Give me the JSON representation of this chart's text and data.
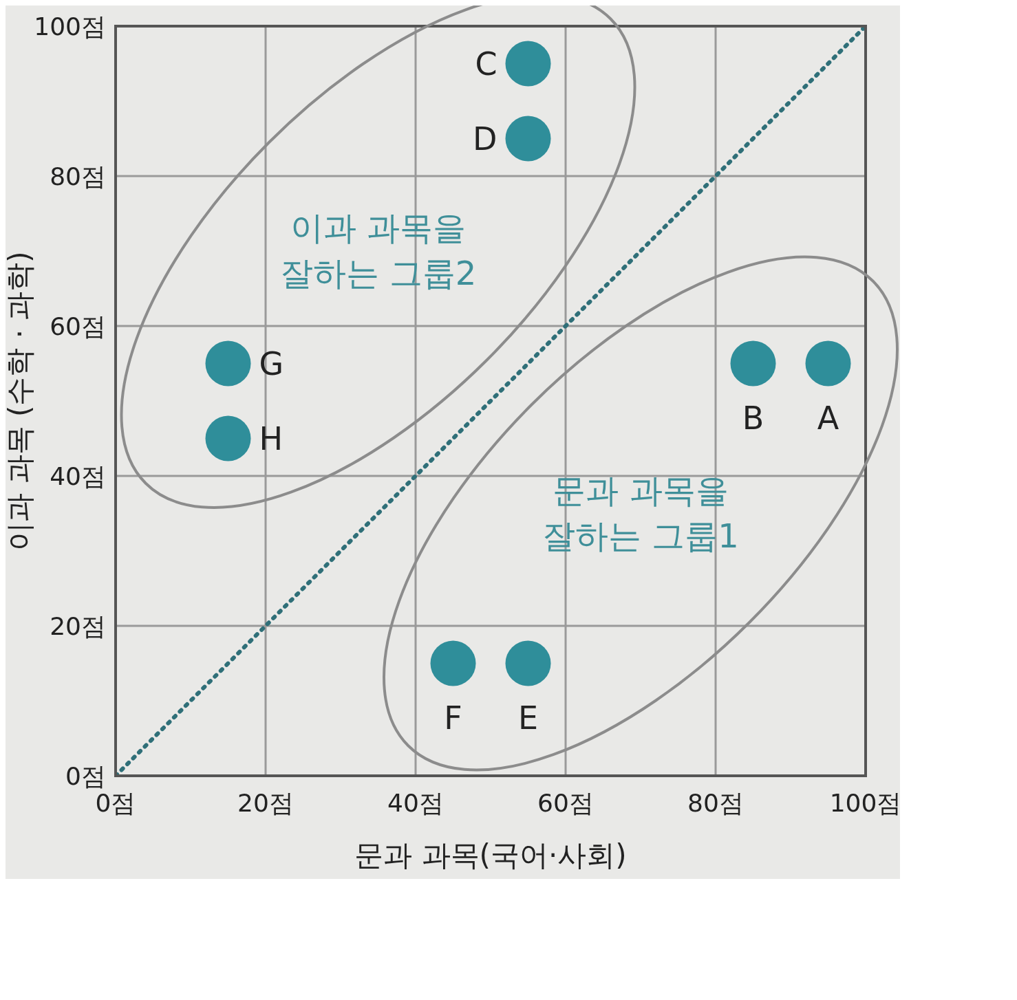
{
  "chart_data": {
    "type": "scatter",
    "xlabel": "문과 과목(국어·사회)",
    "ylabel": "이과 과목 (수학 · 과학)",
    "series": [
      {
        "color": "#2f8e9a",
        "marker": "circle",
        "x": [
          95,
          85,
          55,
          55,
          55,
          45,
          15,
          15
        ],
        "values": [
          55,
          55,
          95,
          85,
          15,
          15,
          55,
          45
        ],
        "value_labels": [
          "A",
          "B",
          "C",
          "D",
          "E",
          "F",
          "G",
          "H"
        ]
      },
      {
        "type": "line",
        "color": "#2f6f78",
        "marker": "none",
        "line_style": "dotted",
        "x": [
          0,
          100
        ],
        "values": [
          0,
          100
        ]
      }
    ],
    "xlim": [
      0,
      100
    ],
    "ylim": [
      0,
      100
    ],
    "xticks": [
      {
        "value": 0,
        "label": "0점"
      },
      {
        "value": 20,
        "label": "20점"
      },
      {
        "value": 40,
        "label": "40점"
      },
      {
        "value": 60,
        "label": "60점"
      },
      {
        "value": 80,
        "label": "80점"
      },
      {
        "value": 100,
        "label": "100점"
      }
    ],
    "yticks": [
      {
        "value": 0,
        "label": "0점"
      },
      {
        "value": 20,
        "label": "20점"
      },
      {
        "value": 40,
        "label": "40점"
      },
      {
        "value": 60,
        "label": "60점"
      },
      {
        "value": 80,
        "label": "80점"
      },
      {
        "value": 100,
        "label": "100점"
      }
    ],
    "grid": true,
    "legend": false,
    "annotations": [
      "문과 과목을\n잘하는 그룹1",
      "이과 과목을\n잘하는 그룹2"
    ]
  }
}
